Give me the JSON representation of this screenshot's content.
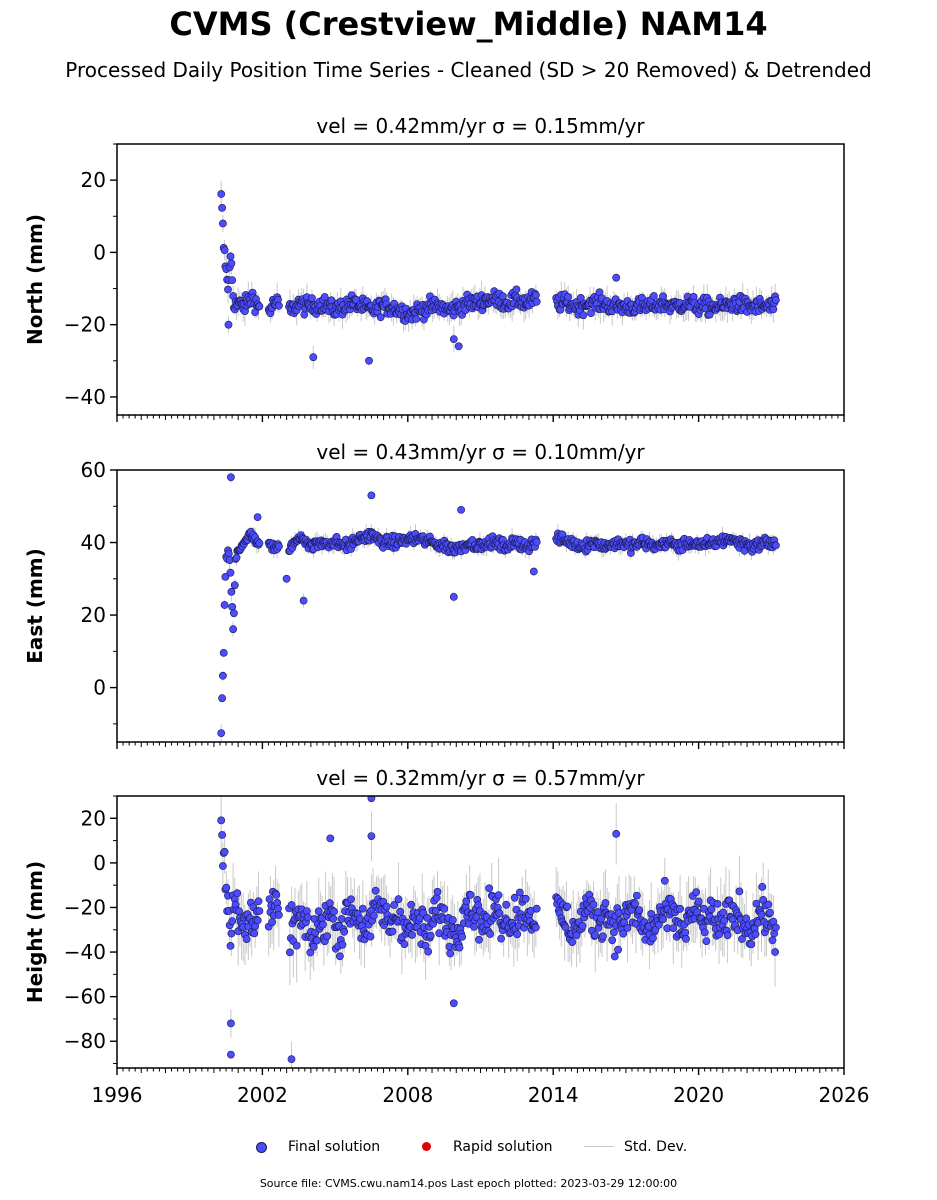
{
  "title": "CVMS (Crestview_Middle) NAM14",
  "subtitle": "Processed Daily Position Time Series - Cleaned (SD > 20 Removed) & Detrended",
  "legend": {
    "final": "Final solution",
    "rapid": "Rapid solution",
    "std": "Std. Dev."
  },
  "source": "Source file: CVMS.cwu.nam14.pos  Last epoch plotted: 2023-03-29 12:00:00",
  "colors": {
    "final": "#4b4bff",
    "final_edge": "#1a1a4a",
    "rapid": "#e00000",
    "std": "#c8c8c8"
  },
  "chart_data": [
    {
      "type": "scatter",
      "component": "north",
      "title": "vel = 0.42mm/yr   σ = 0.15mm/yr",
      "ylabel": "North (mm)",
      "xlim": [
        1996,
        2026
      ],
      "ylim": [
        -45,
        30
      ],
      "yticks": [
        20,
        0,
        -20,
        -40
      ],
      "ytick_labels": [
        "20",
        "0",
        "−20",
        "−40"
      ],
      "xticks": [
        1996,
        2002,
        2008,
        2014,
        2020,
        2026
      ],
      "xtick_labels": [],
      "grid": false,
      "series": [
        {
          "name": "Final solution",
          "x": [
            2000.3,
            2000.35,
            2000.4,
            2000.5,
            2000.6,
            2000.7,
            2000.8,
            2000.9,
            2001.0,
            2001.2,
            2001.4,
            2001.6,
            2001.8,
            2002.3,
            2002.5,
            2003.2,
            2003.5,
            2003.8,
            2004.1,
            2004.5,
            2004.9,
            2005.3,
            2005.7,
            2006.1,
            2006.5,
            2006.9,
            2007.3,
            2007.7,
            2008.1,
            2008.5,
            2008.9,
            2009.3,
            2009.7,
            2010.1,
            2010.5,
            2010.9,
            2011.3,
            2011.7,
            2012.1,
            2012.5,
            2012.9,
            2013.2,
            2014.2,
            2014.6,
            2015.0,
            2015.5,
            2016.0,
            2016.5,
            2017.0,
            2017.5,
            2018.0,
            2018.5,
            2019.0,
            2019.5,
            2020.0,
            2020.5,
            2021.0,
            2021.5,
            2022.0,
            2022.5,
            2023.0,
            2023.2
          ],
          "y": [
            15,
            10,
            2,
            -5,
            -10,
            0,
            -13,
            -15,
            -14,
            -15,
            -14,
            -12,
            -15,
            -16,
            -14,
            -16,
            -14,
            -15,
            -15,
            -14,
            -16,
            -15,
            -14,
            -15,
            -16,
            -15,
            -15,
            -16,
            -17,
            -16,
            -15,
            -15,
            -16,
            -15,
            -14,
            -14,
            -13,
            -13,
            -14,
            -13,
            -14,
            -13,
            -14,
            -14,
            -15,
            -14,
            -14,
            -15,
            -15,
            -15,
            -15,
            -14,
            -15,
            -14,
            -15,
            -15,
            -15,
            -14,
            -15,
            -15,
            -15,
            -15
          ],
          "y_sigma": 3
        }
      ],
      "outliers": [
        [
          2004.1,
          -29
        ],
        [
          2006.4,
          -30
        ],
        [
          2009.9,
          -24
        ],
        [
          2010.1,
          -26
        ],
        [
          2000.6,
          -20
        ],
        [
          2016.6,
          -7
        ]
      ]
    },
    {
      "type": "scatter",
      "component": "east",
      "title": "vel = 0.43mm/yr   σ = 0.10mm/yr",
      "ylabel": "East (mm)",
      "xlim": [
        1996,
        2026
      ],
      "ylim": [
        -15,
        60
      ],
      "yticks": [
        60,
        40,
        20,
        0
      ],
      "ytick_labels": [
        "60",
        "40",
        "20",
        "0"
      ],
      "xticks": [
        1996,
        2002,
        2008,
        2014,
        2020,
        2026
      ],
      "xtick_labels": [],
      "grid": false,
      "series": [
        {
          "name": "Final solution",
          "x": [
            2000.3,
            2000.35,
            2000.4,
            2000.45,
            2000.5,
            2000.6,
            2000.7,
            2000.8,
            2000.9,
            2001.0,
            2001.2,
            2001.5,
            2001.8,
            2002.3,
            2002.5,
            2003.2,
            2003.6,
            2004.0,
            2004.5,
            2005.0,
            2005.5,
            2006.0,
            2006.5,
            2007.0,
            2007.5,
            2008.0,
            2008.5,
            2009.0,
            2009.5,
            2010.0,
            2010.5,
            2011.0,
            2011.5,
            2012.0,
            2012.5,
            2013.0,
            2013.3,
            2014.2,
            2014.7,
            2015.2,
            2015.7,
            2016.2,
            2016.7,
            2017.2,
            2017.7,
            2018.2,
            2018.7,
            2019.2,
            2019.7,
            2020.2,
            2020.7,
            2021.2,
            2021.7,
            2022.2,
            2022.7,
            2023.0,
            2023.2
          ],
          "y": [
            -13,
            0,
            8,
            25,
            35,
            38,
            30,
            15,
            37,
            38,
            40,
            42,
            40,
            40,
            38,
            39,
            42,
            39,
            40,
            40,
            39,
            41,
            42,
            40,
            40,
            41,
            41,
            40,
            39,
            38,
            40,
            39,
            40,
            39,
            40,
            39,
            40,
            41,
            40,
            39,
            40,
            39,
            40,
            39,
            40,
            39,
            40,
            39,
            40,
            39,
            40,
            41,
            40,
            39,
            40,
            40,
            39
          ],
          "y_sigma": 2
        }
      ],
      "outliers": [
        [
          2000.7,
          58
        ],
        [
          2001.8,
          47
        ],
        [
          2003.7,
          24
        ],
        [
          2006.5,
          53
        ],
        [
          2009.9,
          25
        ],
        [
          2010.2,
          49
        ],
        [
          2013.2,
          32
        ],
        [
          2003.0,
          30
        ]
      ]
    },
    {
      "type": "scatter",
      "component": "height",
      "title": "vel = 0.32mm/yr   σ = 0.57mm/yr",
      "ylabel": "Height (mm)",
      "xlim": [
        1996,
        2026
      ],
      "ylim": [
        -92,
        30
      ],
      "yticks": [
        20,
        0,
        -20,
        -40,
        -60,
        -80
      ],
      "ytick_labels": [
        "20",
        "0",
        "−20",
        "−40",
        "−60",
        "−80"
      ],
      "xticks": [
        1996,
        2002,
        2008,
        2014,
        2020,
        2026
      ],
      "xtick_labels": [
        "1996",
        "2002",
        "2008",
        "2014",
        "2020",
        "2026"
      ],
      "grid": false,
      "series": [
        {
          "name": "Final solution",
          "x": [
            2000.3,
            2000.4,
            2000.5,
            2000.6,
            2000.7,
            2000.8,
            2001.0,
            2001.2,
            2001.5,
            2001.8,
            2002.3,
            2002.5,
            2003.2,
            2003.6,
            2004.0,
            2004.4,
            2004.8,
            2005.2,
            2005.6,
            2006.0,
            2006.4,
            2006.8,
            2007.2,
            2007.6,
            2008.0,
            2008.4,
            2008.8,
            2009.2,
            2009.6,
            2010.0,
            2010.4,
            2010.8,
            2011.2,
            2011.6,
            2012.0,
            2012.4,
            2012.8,
            2013.2,
            2014.2,
            2014.6,
            2015.0,
            2015.4,
            2015.8,
            2016.2,
            2016.6,
            2017.0,
            2017.4,
            2017.8,
            2018.2,
            2018.6,
            2019.0,
            2019.4,
            2019.8,
            2020.2,
            2020.6,
            2021.0,
            2021.4,
            2021.8,
            2022.2,
            2022.6,
            2023.0,
            2023.2
          ],
          "y": [
            20,
            5,
            -10,
            -20,
            -30,
            -15,
            -25,
            -30,
            -25,
            -20,
            -25,
            -20,
            -30,
            -25,
            -35,
            -28,
            -22,
            -32,
            -20,
            -25,
            -30,
            -18,
            -28,
            -22,
            -30,
            -25,
            -35,
            -20,
            -28,
            -32,
            -18,
            -22,
            -28,
            -20,
            -26,
            -24,
            -20,
            -25,
            -22,
            -28,
            -30,
            -20,
            -26,
            -22,
            -30,
            -25,
            -20,
            -32,
            -28,
            -22,
            -25,
            -30,
            -20,
            -28,
            -24,
            -30,
            -22,
            -26,
            -30,
            -20,
            -28,
            -32
          ],
          "y_sigma": 12
        }
      ],
      "outliers": [
        [
          2000.7,
          -72
        ],
        [
          2000.7,
          -86
        ],
        [
          2003.2,
          -88
        ],
        [
          2006.5,
          29
        ],
        [
          2006.5,
          12
        ],
        [
          2004.8,
          11
        ],
        [
          2016.6,
          13
        ],
        [
          2009.9,
          -63
        ]
      ]
    }
  ]
}
